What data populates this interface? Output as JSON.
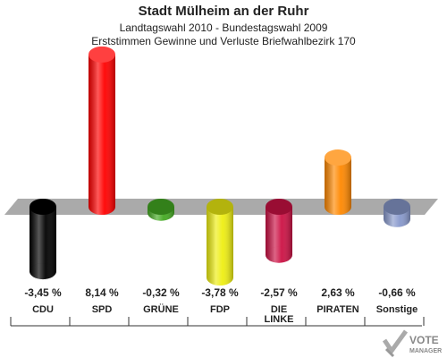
{
  "header": {
    "title": "Stadt Mülheim an der Ruhr",
    "subtitle1": "Landtagswahl 2010 - Bundestagswahl 2009",
    "subtitle2": "Erststimmen Gewinne und Verluste Briefwahlbezirk 170"
  },
  "chart_data": {
    "type": "bar",
    "categories": [
      "CDU",
      "SPD",
      "GRÜNE",
      "FDP",
      "DIE LINKE",
      "PIRATEN",
      "Sonstige"
    ],
    "category_lines": [
      [
        "CDU"
      ],
      [
        "SPD"
      ],
      [
        "GRÜNE"
      ],
      [
        "FDP"
      ],
      [
        "DIE",
        "LINKE"
      ],
      [
        "PIRATEN"
      ],
      [
        "Sonstige"
      ]
    ],
    "values": [
      -3.45,
      8.14,
      -0.32,
      -3.78,
      -2.57,
      2.63,
      -0.66
    ],
    "value_labels": [
      "-3,45 %",
      "8,14 %",
      "-0,32 %",
      "-3,78 %",
      "-2,57 %",
      "2,63 %",
      "-0,66 %"
    ],
    "colors": [
      "#000000",
      "#ff0000",
      "#44aa22",
      "#eeee11",
      "#cc1144",
      "#ff8800",
      "#8899cc"
    ],
    "ylim": [
      -4,
      8.5
    ],
    "grid": false,
    "legend": "none"
  },
  "logo": {
    "line1": "VOTE",
    "line2": "MANAGER"
  }
}
